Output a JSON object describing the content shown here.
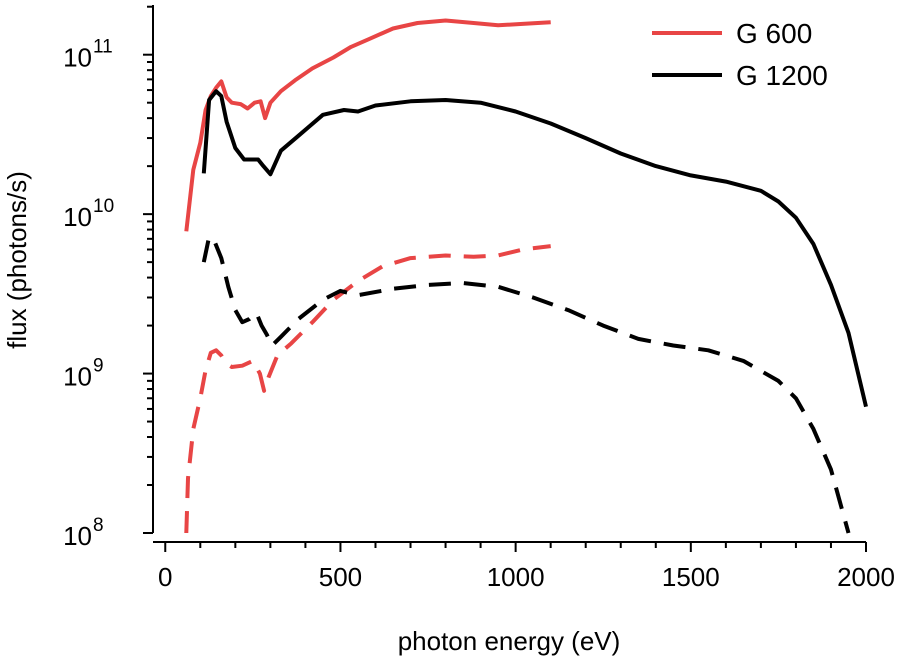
{
  "chart_data": {
    "type": "line",
    "xlabel": "photon energy (eV)",
    "ylabel": "flux (photons/s)",
    "x_scale": "linear",
    "y_scale": "log",
    "xlim": [
      -35,
      2000
    ],
    "ylim": [
      100000000.0,
      205000000000.0
    ],
    "x_ticks": [
      0,
      500,
      1000,
      1500,
      2000
    ],
    "x_tick_labels": [
      "0",
      "500",
      "1000",
      "1500",
      "2000"
    ],
    "y_ticks": [
      {
        "value": 100000000.0,
        "base": "10",
        "exp": "8"
      },
      {
        "value": 1000000000.0,
        "base": "10",
        "exp": "9"
      },
      {
        "value": 10000000000.0,
        "base": "10",
        "exp": "10"
      },
      {
        "value": 100000000000.0,
        "base": "10",
        "exp": "11"
      }
    ],
    "legend": {
      "position": "top-right",
      "entries": [
        {
          "label": "G 600",
          "color": "#e84545"
        },
        {
          "label": "G 1200",
          "color": "#000000"
        }
      ]
    },
    "series": [
      {
        "name": "G 600 solid",
        "grating": "G 600",
        "color": "#e84545",
        "dash": false,
        "points": [
          [
            60,
            7800000000.0
          ],
          [
            80,
            19000000000.0
          ],
          [
            100,
            28000000000.0
          ],
          [
            115,
            45000000000.0
          ],
          [
            130,
            55000000000.0
          ],
          [
            145,
            62000000000.0
          ],
          [
            160,
            68000000000.0
          ],
          [
            175,
            54000000000.0
          ],
          [
            190,
            50000000000.0
          ],
          [
            215,
            49000000000.0
          ],
          [
            235,
            46000000000.0
          ],
          [
            255,
            50000000000.0
          ],
          [
            272,
            51000000000.0
          ],
          [
            285,
            40000000000.0
          ],
          [
            300,
            50000000000.0
          ],
          [
            330,
            59000000000.0
          ],
          [
            370,
            69000000000.0
          ],
          [
            420,
            82000000000.0
          ],
          [
            480,
            96000000000.0
          ],
          [
            530,
            112000000000.0
          ],
          [
            580,
            125000000000.0
          ],
          [
            650,
            146000000000.0
          ],
          [
            720,
            158000000000.0
          ],
          [
            800,
            164000000000.0
          ],
          [
            880,
            158000000000.0
          ],
          [
            950,
            153000000000.0
          ],
          [
            1020,
            156000000000.0
          ],
          [
            1100,
            160000000000.0
          ]
        ]
      },
      {
        "name": "G 1200 solid",
        "grating": "G 1200",
        "color": "#000000",
        "dash": false,
        "points": [
          [
            110,
            18000000000.0
          ],
          [
            125,
            52000000000.0
          ],
          [
            145,
            59000000000.0
          ],
          [
            160,
            55000000000.0
          ],
          [
            175,
            38000000000.0
          ],
          [
            200,
            26000000000.0
          ],
          [
            225,
            22000000000.0
          ],
          [
            245,
            22000000000.0
          ],
          [
            265,
            22000000000.0
          ],
          [
            280,
            20000000000.0
          ],
          [
            300,
            17800000000.0
          ],
          [
            330,
            25000000000.0
          ],
          [
            380,
            31000000000.0
          ],
          [
            450,
            42000000000.0
          ],
          [
            510,
            45000000000.0
          ],
          [
            550,
            44000000000.0
          ],
          [
            600,
            48000000000.0
          ],
          [
            700,
            51000000000.0
          ],
          [
            800,
            52000000000.0
          ],
          [
            900,
            50000000000.0
          ],
          [
            1000,
            44000000000.0
          ],
          [
            1100,
            37000000000.0
          ],
          [
            1200,
            30000000000.0
          ],
          [
            1300,
            24000000000.0
          ],
          [
            1400,
            20000000000.0
          ],
          [
            1500,
            17500000000.0
          ],
          [
            1600,
            16000000000.0
          ],
          [
            1700,
            14000000000.0
          ],
          [
            1750,
            12000000000.0
          ],
          [
            1800,
            9500000000.0
          ],
          [
            1850,
            6500000000.0
          ],
          [
            1900,
            3600000000.0
          ],
          [
            1950,
            1800000000.0
          ],
          [
            2000,
            620000000.0
          ]
        ]
      },
      {
        "name": "G 600 dashed",
        "grating": "G 600",
        "color": "#e84545",
        "dash": true,
        "points": [
          [
            60,
            100000000.0
          ],
          [
            65,
            220000000.0
          ],
          [
            80,
            450000000.0
          ],
          [
            100,
            700000000.0
          ],
          [
            115,
            1050000000.0
          ],
          [
            130,
            1350000000.0
          ],
          [
            145,
            1400000000.0
          ],
          [
            160,
            1300000000.0
          ],
          [
            175,
            1150000000.0
          ],
          [
            190,
            1100000000.0
          ],
          [
            220,
            1120000000.0
          ],
          [
            250,
            1200000000.0
          ],
          [
            270,
            1000000000.0
          ],
          [
            282,
            780000000.0
          ],
          [
            295,
            950000000.0
          ],
          [
            320,
            1300000000.0
          ],
          [
            360,
            1550000000.0
          ],
          [
            420,
            2100000000.0
          ],
          [
            480,
            2900000000.0
          ],
          [
            550,
            3800000000.0
          ],
          [
            620,
            4700000000.0
          ],
          [
            700,
            5300000000.0
          ],
          [
            800,
            5500000000.0
          ],
          [
            880,
            5400000000.0
          ],
          [
            950,
            5500000000.0
          ],
          [
            1020,
            6000000000.0
          ],
          [
            1100,
            6300000000.0
          ]
        ]
      },
      {
        "name": "G 1200 dashed",
        "grating": "G 1200",
        "color": "#000000",
        "dash": true,
        "points": [
          [
            110,
            5000000000.0
          ],
          [
            125,
            7200000000.0
          ],
          [
            140,
            6800000000.0
          ],
          [
            160,
            5300000000.0
          ],
          [
            180,
            3500000000.0
          ],
          [
            200,
            2500000000.0
          ],
          [
            220,
            2100000000.0
          ],
          [
            240,
            2200000000.0
          ],
          [
            260,
            2400000000.0
          ],
          [
            275,
            2000000000.0
          ],
          [
            290,
            1750000000.0
          ],
          [
            305,
            1500000000.0
          ],
          [
            330,
            1700000000.0
          ],
          [
            380,
            2200000000.0
          ],
          [
            450,
            2900000000.0
          ],
          [
            500,
            3300000000.0
          ],
          [
            550,
            3100000000.0
          ],
          [
            650,
            3400000000.0
          ],
          [
            750,
            3600000000.0
          ],
          [
            850,
            3700000000.0
          ],
          [
            950,
            3500000000.0
          ],
          [
            1050,
            3000000000.0
          ],
          [
            1150,
            2500000000.0
          ],
          [
            1250,
            2000000000.0
          ],
          [
            1350,
            1650000000.0
          ],
          [
            1450,
            1500000000.0
          ],
          [
            1550,
            1400000000.0
          ],
          [
            1650,
            1200000000.0
          ],
          [
            1750,
            900000000.0
          ],
          [
            1800,
            700000000.0
          ],
          [
            1850,
            450000000.0
          ],
          [
            1900,
            250000000.0
          ],
          [
            1950,
            100000000.0
          ]
        ]
      }
    ]
  }
}
